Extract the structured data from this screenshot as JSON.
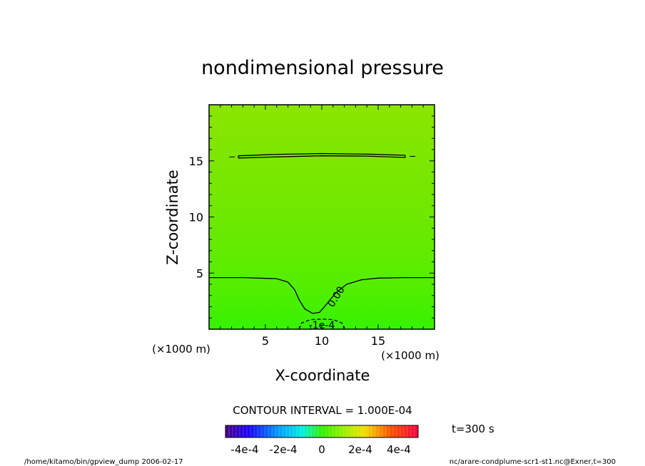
{
  "chart_data": {
    "type": "heatmap",
    "title": "nondimensional pressure",
    "xlabel": "X-coordinate",
    "ylabel": "Z-coordinate",
    "x_unit": "(×1000 m)",
    "y_unit": "(×1000 m)",
    "xlim": [
      0,
      20
    ],
    "ylim": [
      0,
      20
    ],
    "x_ticks": [
      5,
      10,
      15
    ],
    "y_ticks": [
      5,
      10,
      15
    ],
    "grid": false,
    "contour_interval": "CONTOUR INTERVAL = 1.000E-04",
    "contours": [
      {
        "level": "0.00",
        "label": "0.00",
        "style": "solid",
        "points": [
          [
            0,
            4.6
          ],
          [
            3,
            4.6
          ],
          [
            6,
            4.5
          ],
          [
            7,
            4.2
          ],
          [
            7.6,
            3.5
          ],
          [
            8.0,
            2.6
          ],
          [
            8.5,
            1.8
          ],
          [
            9.2,
            1.4
          ],
          [
            9.8,
            1.5
          ],
          [
            10.4,
            2.2
          ],
          [
            11.2,
            3.2
          ],
          [
            12.2,
            4.0
          ],
          [
            13.5,
            4.4
          ],
          [
            15,
            4.55
          ],
          [
            17.5,
            4.6
          ],
          [
            20,
            4.6
          ]
        ]
      },
      {
        "level": "0.00",
        "style": "solid-band",
        "points": [
          [
            2.6,
            15.25
          ],
          [
            6,
            15.35
          ],
          [
            10,
            15.45
          ],
          [
            14,
            15.42
          ],
          [
            17.4,
            15.3
          ],
          [
            17.4,
            15.5
          ],
          [
            14,
            15.6
          ],
          [
            10,
            15.65
          ],
          [
            6,
            15.58
          ],
          [
            2.6,
            15.45
          ],
          [
            2.6,
            15.25
          ]
        ]
      },
      {
        "level": "-1e-4",
        "label": "-1e-4",
        "style": "dashed",
        "points": [
          [
            8.0,
            0
          ],
          [
            8.2,
            0.55
          ],
          [
            9.0,
            0.85
          ],
          [
            10,
            0.9
          ],
          [
            11.0,
            0.85
          ],
          [
            11.8,
            0.55
          ],
          [
            12.0,
            0
          ]
        ]
      }
    ],
    "colorbar": {
      "ticks": [
        "-4e-4",
        "-2e-4",
        "0",
        "2e-4",
        "4e-4"
      ],
      "tick_values": [
        -0.0004,
        -0.0002,
        0,
        0.0002,
        0.0004
      ],
      "min": -0.0005,
      "max": 0.0005
    },
    "time_label": "t=300 s"
  },
  "footer": {
    "left": "/home/kitamo/bin/gpview_dump  2006-02-17",
    "right": "nc/arare-condplume-scr1-st1.nc@Exner,t=300"
  },
  "colors": {
    "field_top": "#8ae600",
    "field_mid": "#6ee600",
    "field_bottom": "#3cf000",
    "cold_spot": "#00e0ff"
  }
}
